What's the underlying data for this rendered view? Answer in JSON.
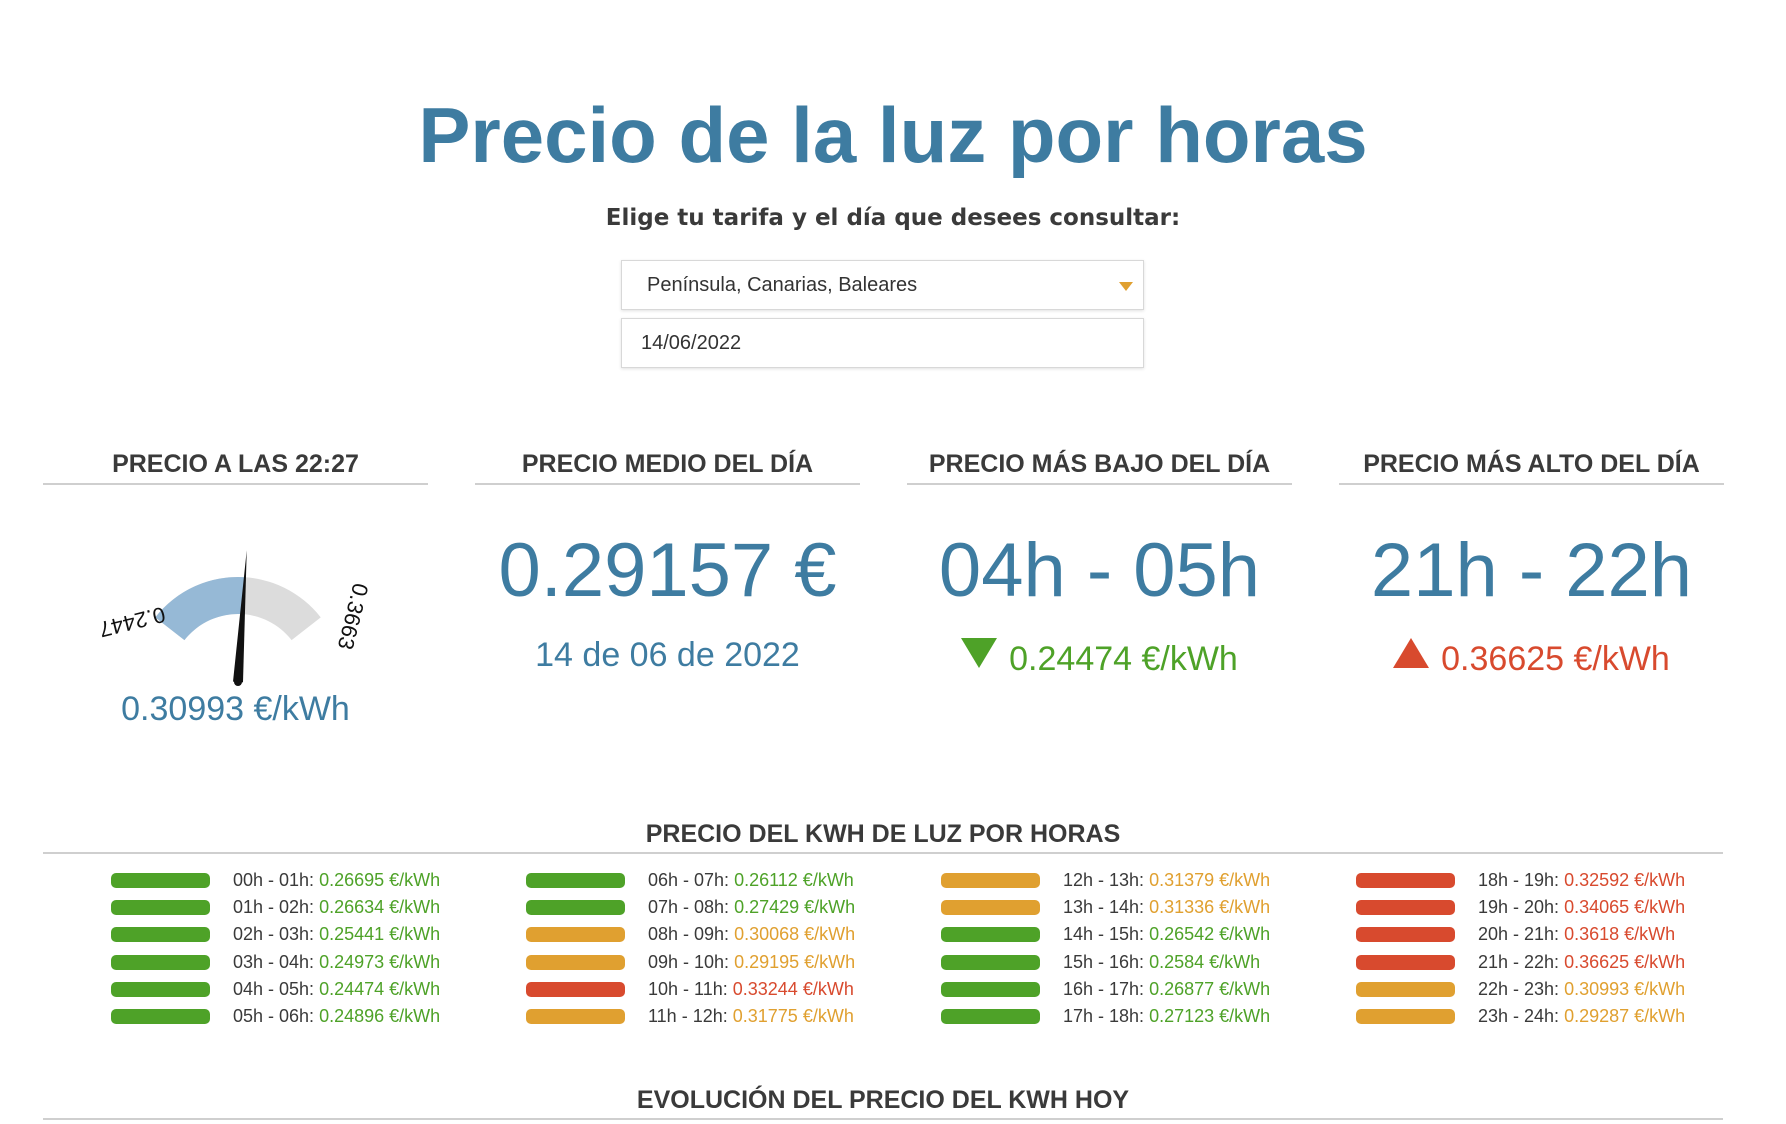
{
  "header": {
    "title": "Precio de la luz por horas",
    "subtitle": "Elige tu tarifa y el día que desees consultar:"
  },
  "controls": {
    "tariff_selected": "Península, Canarias, Baleares",
    "date_value": "14/06/2022"
  },
  "colors": {
    "accent": "#3e7ca1",
    "cheap": "#4ea228",
    "medium": "#e0a030",
    "expensive": "#d84a2e",
    "gauge_fill": "#96b9d6",
    "gauge_rest": "#dcdcdc"
  },
  "cards": {
    "current": {
      "title": "PRECIO A LAS 22:27",
      "gauge_min_label": "0.2447",
      "gauge_max_label": "0.3663",
      "gauge_min": 0.24474,
      "gauge_max": 0.36625,
      "gauge_value": 0.30993,
      "value": "0.30993 €/kWh"
    },
    "average": {
      "title": "PRECIO MEDIO DEL DÍA",
      "value": "0.29157 €",
      "date": "14 de 06 de 2022"
    },
    "lowest": {
      "title": "PRECIO MÁS BAJO DEL DÍA",
      "range": "04h - 05h",
      "price": "0.24474 €/kWh",
      "icon": "arrow-down-icon"
    },
    "highest": {
      "title": "PRECIO MÁS ALTO DEL DÍA",
      "range": "21h - 22h",
      "price": "0.36625 €/kWh",
      "icon": "arrow-up-icon"
    }
  },
  "hourly": {
    "title": "PRECIO DEL KWH DE LUZ POR HORAS",
    "columns": [
      [
        {
          "label": "00h - 01h:",
          "price": "0.26695 €/kWh",
          "level": "cheap"
        },
        {
          "label": "01h - 02h:",
          "price": "0.26634 €/kWh",
          "level": "cheap"
        },
        {
          "label": "02h - 03h:",
          "price": "0.25441 €/kWh",
          "level": "cheap"
        },
        {
          "label": "03h - 04h:",
          "price": "0.24973 €/kWh",
          "level": "cheap"
        },
        {
          "label": "04h - 05h:",
          "price": "0.24474 €/kWh",
          "level": "cheap"
        },
        {
          "label": "05h - 06h:",
          "price": "0.24896 €/kWh",
          "level": "cheap"
        }
      ],
      [
        {
          "label": "06h - 07h:",
          "price": "0.26112 €/kWh",
          "level": "cheap"
        },
        {
          "label": "07h - 08h:",
          "price": "0.27429 €/kWh",
          "level": "cheap"
        },
        {
          "label": "08h - 09h:",
          "price": "0.30068 €/kWh",
          "level": "medium"
        },
        {
          "label": "09h - 10h:",
          "price": "0.29195 €/kWh",
          "level": "medium"
        },
        {
          "label": "10h - 11h:",
          "price": "0.33244 €/kWh",
          "level": "expensive"
        },
        {
          "label": "11h - 12h:",
          "price": "0.31775 €/kWh",
          "level": "medium"
        }
      ],
      [
        {
          "label": "12h - 13h:",
          "price": "0.31379 €/kWh",
          "level": "medium"
        },
        {
          "label": "13h - 14h:",
          "price": "0.31336 €/kWh",
          "level": "medium"
        },
        {
          "label": "14h - 15h:",
          "price": "0.26542 €/kWh",
          "level": "cheap"
        },
        {
          "label": "15h - 16h:",
          "price": "0.2584 €/kWh",
          "level": "cheap"
        },
        {
          "label": "16h - 17h:",
          "price": "0.26877 €/kWh",
          "level": "cheap"
        },
        {
          "label": "17h - 18h:",
          "price": "0.27123 €/kWh",
          "level": "cheap"
        }
      ],
      [
        {
          "label": "18h - 19h:",
          "price": "0.32592 €/kWh",
          "level": "expensive"
        },
        {
          "label": "19h - 20h:",
          "price": "0.34065 €/kWh",
          "level": "expensive"
        },
        {
          "label": "20h - 21h:",
          "price": "0.3618 €/kWh",
          "level": "expensive"
        },
        {
          "label": "21h - 22h:",
          "price": "0.36625 €/kWh",
          "level": "expensive"
        },
        {
          "label": "22h - 23h:",
          "price": "0.30993 €/kWh",
          "level": "medium"
        },
        {
          "label": "23h - 24h:",
          "price": "0.29287 €/kWh",
          "level": "medium"
        }
      ]
    ]
  },
  "evolution": {
    "title": "EVOLUCIÓN DEL PRECIO DEL KWH HOY"
  }
}
